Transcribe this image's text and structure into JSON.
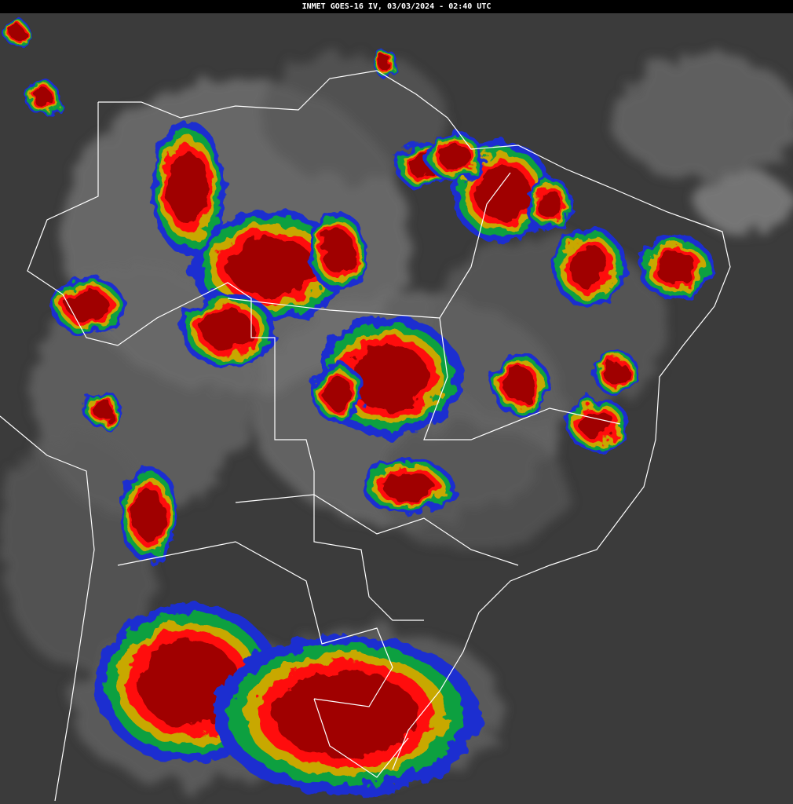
{
  "header": {
    "title": "INMET GOES-16 IV, 03/03/2024 - 02:40 UTC"
  }
}
